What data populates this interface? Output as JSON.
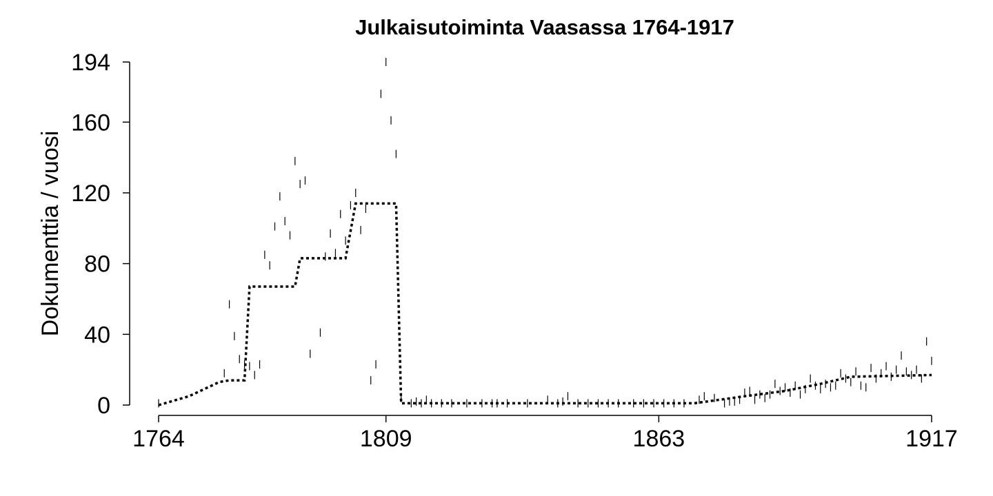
{
  "chart_data": {
    "type": "scatter",
    "title": "Julkaisutoiminta Vaasassa 1764-1917",
    "xlabel": "",
    "ylabel": "Dokumenttia / vuosi",
    "xlim": [
      1764,
      1917
    ],
    "ylim": [
      0,
      194
    ],
    "x_ticks": [
      1764,
      1809,
      1863,
      1917
    ],
    "y_ticks": [
      0,
      40,
      80,
      120,
      160,
      194
    ],
    "grid": false,
    "legend": "none",
    "colors": {
      "points": "#000000",
      "line": "#000000"
    },
    "series": [
      {
        "type": "scatter",
        "marker": "vertical-dash",
        "points": [
          [
            1764,
            1
          ],
          [
            1777,
            18
          ],
          [
            1778,
            57
          ],
          [
            1779,
            39
          ],
          [
            1780,
            26
          ],
          [
            1781,
            23
          ],
          [
            1782,
            22
          ],
          [
            1783,
            17
          ],
          [
            1784,
            23
          ],
          [
            1785,
            85
          ],
          [
            1786,
            79
          ],
          [
            1787,
            101
          ],
          [
            1788,
            118
          ],
          [
            1789,
            104
          ],
          [
            1790,
            96
          ],
          [
            1791,
            138
          ],
          [
            1792,
            125
          ],
          [
            1793,
            127
          ],
          [
            1794,
            29
          ],
          [
            1796,
            41
          ],
          [
            1797,
            84
          ],
          [
            1798,
            97
          ],
          [
            1799,
            86
          ],
          [
            1800,
            108
          ],
          [
            1801,
            93
          ],
          [
            1802,
            113
          ],
          [
            1803,
            120
          ],
          [
            1804,
            99
          ],
          [
            1805,
            111
          ],
          [
            1806,
            14
          ],
          [
            1807,
            23
          ],
          [
            1808,
            176
          ],
          [
            1809,
            194
          ],
          [
            1810,
            161
          ],
          [
            1811,
            142
          ],
          [
            1812,
            4
          ],
          [
            1814,
            1
          ],
          [
            1815,
            2
          ],
          [
            1816,
            1
          ],
          [
            1817,
            3
          ],
          [
            1818,
            1
          ],
          [
            1820,
            1
          ],
          [
            1822,
            1
          ],
          [
            1825,
            1
          ],
          [
            1828,
            1
          ],
          [
            1830,
            1
          ],
          [
            1831,
            1
          ],
          [
            1833,
            1
          ],
          [
            1837,
            1
          ],
          [
            1841,
            3
          ],
          [
            1843,
            1
          ],
          [
            1844,
            2
          ],
          [
            1845,
            5
          ],
          [
            1847,
            1
          ],
          [
            1849,
            1
          ],
          [
            1851,
            1
          ],
          [
            1853,
            1
          ],
          [
            1855,
            1
          ],
          [
            1858,
            1
          ],
          [
            1860,
            1
          ],
          [
            1862,
            1
          ],
          [
            1864,
            1
          ],
          [
            1866,
            1
          ],
          [
            1868,
            1
          ],
          [
            1871,
            3
          ],
          [
            1872,
            5
          ],
          [
            1874,
            4
          ],
          [
            1876,
            1
          ],
          [
            1877,
            2
          ],
          [
            1878,
            2
          ],
          [
            1879,
            3
          ],
          [
            1880,
            7
          ],
          [
            1881,
            8
          ],
          [
            1882,
            3
          ],
          [
            1883,
            6
          ],
          [
            1884,
            4
          ],
          [
            1885,
            6
          ],
          [
            1886,
            12
          ],
          [
            1887,
            8
          ],
          [
            1888,
            10
          ],
          [
            1889,
            7
          ],
          [
            1890,
            11
          ],
          [
            1891,
            6
          ],
          [
            1892,
            9
          ],
          [
            1893,
            15
          ],
          [
            1894,
            11
          ],
          [
            1895,
            9
          ],
          [
            1896,
            12
          ],
          [
            1897,
            10
          ],
          [
            1898,
            11
          ],
          [
            1899,
            18
          ],
          [
            1900,
            15
          ],
          [
            1901,
            13
          ],
          [
            1902,
            19
          ],
          [
            1903,
            11
          ],
          [
            1904,
            10
          ],
          [
            1905,
            21
          ],
          [
            1906,
            15
          ],
          [
            1907,
            18
          ],
          [
            1908,
            22
          ],
          [
            1909,
            16
          ],
          [
            1910,
            20
          ],
          [
            1911,
            28
          ],
          [
            1912,
            19
          ],
          [
            1913,
            17
          ],
          [
            1914,
            20
          ],
          [
            1915,
            15
          ],
          [
            1916,
            36
          ],
          [
            1917,
            25
          ]
        ]
      },
      {
        "type": "line",
        "style": "dashed-step",
        "points": [
          [
            1764,
            0
          ],
          [
            1770,
            5
          ],
          [
            1776,
            13
          ],
          [
            1778,
            14
          ],
          [
            1779,
            14
          ],
          [
            1780,
            14
          ],
          [
            1781,
            14
          ],
          [
            1782,
            67
          ],
          [
            1790,
            67
          ],
          [
            1791,
            67
          ],
          [
            1792,
            83
          ],
          [
            1801,
            83
          ],
          [
            1803,
            114
          ],
          [
            1811,
            114
          ],
          [
            1812,
            1
          ],
          [
            1840,
            1
          ],
          [
            1870,
            1
          ],
          [
            1880,
            5
          ],
          [
            1888,
            8
          ],
          [
            1895,
            12
          ],
          [
            1901,
            16
          ],
          [
            1917,
            17
          ]
        ]
      }
    ]
  }
}
